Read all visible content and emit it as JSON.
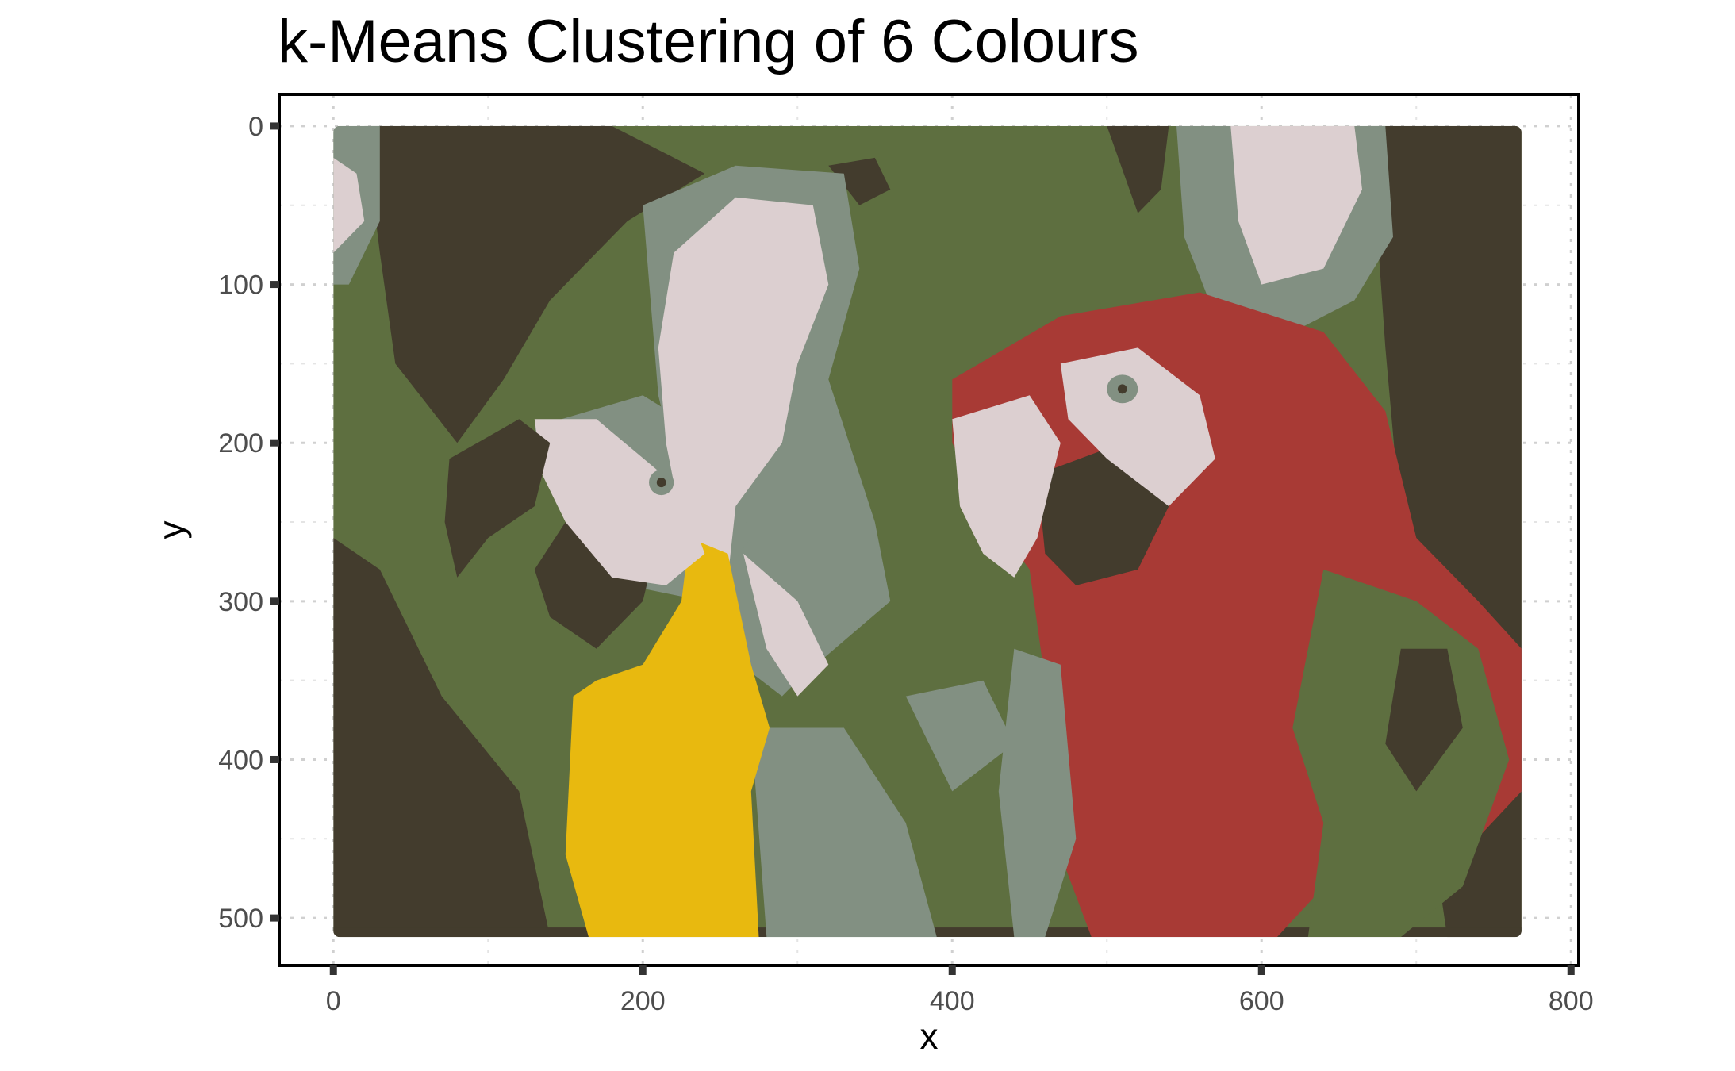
{
  "chart_data": {
    "type": "heatmap",
    "title": "k-Means Clustering of 6 Colours",
    "xlabel": "x",
    "ylabel": "y",
    "xlim": [
      -35,
      805
    ],
    "ylim": [
      530,
      -20
    ],
    "y_reversed": true,
    "image_extent": {
      "x": [
        0,
        768
      ],
      "y": [
        0,
        512
      ]
    },
    "x_ticks": [
      0,
      200,
      400,
      600,
      800
    ],
    "y_ticks": [
      0,
      100,
      200,
      300,
      400,
      500
    ],
    "grid": true,
    "clusters": [
      {
        "name": "dark",
        "color": "#433c2d"
      },
      {
        "name": "green",
        "color": "#5e6f40"
      },
      {
        "name": "grey-green",
        "color": "#829082"
      },
      {
        "name": "pale",
        "color": "#dccfd0"
      },
      {
        "name": "red",
        "color": "#a83a35"
      },
      {
        "name": "yellow",
        "color": "#e8b90f"
      }
    ]
  }
}
